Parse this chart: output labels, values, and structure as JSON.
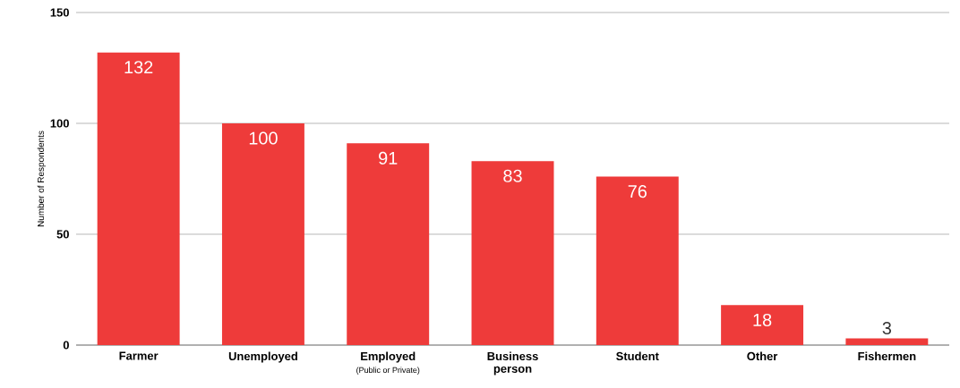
{
  "chart_data": {
    "type": "bar",
    "ylabel": "Number of Respondents",
    "categories": [
      "Farmer",
      "Unemployed",
      "Employed",
      "Business person",
      "Student",
      "Other",
      "Fishermen"
    ],
    "values": [
      132,
      100,
      91,
      83,
      76,
      18,
      3
    ],
    "color": "#ee3b3a",
    "ylim": [
      0,
      150
    ],
    "yticks": [
      0,
      50,
      100,
      150
    ],
    "grid": "y",
    "data_labels": true,
    "annotations": [
      "(Public or Private)"
    ]
  }
}
